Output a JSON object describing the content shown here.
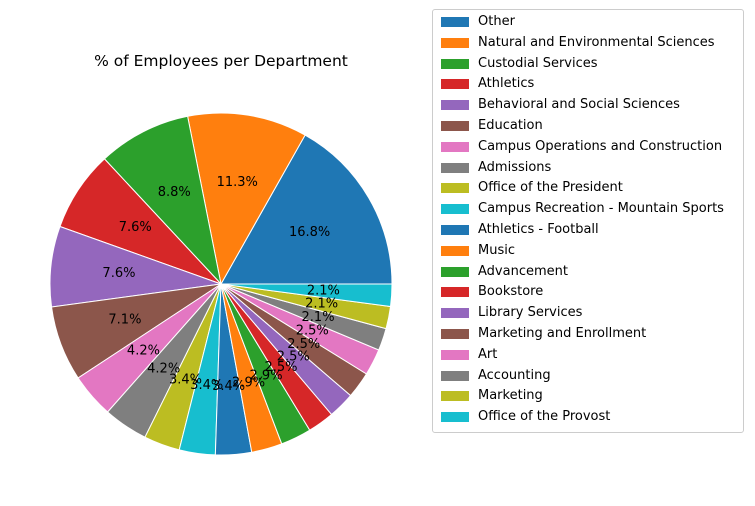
{
  "chart_data": {
    "type": "pie",
    "title": "% of Employees per Department",
    "start_angle_deg": 0,
    "direction": "counterclockwise",
    "label_format": "{pct}%",
    "legend_position": "right",
    "slices": [
      {
        "label": "Other",
        "value": 16.8,
        "color": "#1f77b4",
        "pct_label": "16.8%"
      },
      {
        "label": "Natural and Environmental Sciences",
        "value": 11.3,
        "color": "#ff7f0e",
        "pct_label": "11.3%"
      },
      {
        "label": "Custodial Services",
        "value": 8.8,
        "color": "#2ca02c",
        "pct_label": "8.8%"
      },
      {
        "label": "Athletics",
        "value": 7.6,
        "color": "#d62728",
        "pct_label": "7.6%"
      },
      {
        "label": "Behavioral and Social Sciences",
        "value": 7.6,
        "color": "#9467bd",
        "pct_label": "7.6%"
      },
      {
        "label": "Education",
        "value": 7.1,
        "color": "#8c564b",
        "pct_label": "7.1%"
      },
      {
        "label": "Campus Operations and Construction",
        "value": 4.2,
        "color": "#e377c2",
        "pct_label": "4.2%"
      },
      {
        "label": "Admissions",
        "value": 4.2,
        "color": "#7f7f7f",
        "pct_label": "4.2%"
      },
      {
        "label": "Office of the President",
        "value": 3.4,
        "color": "#bcbd22",
        "pct_label": "3.4%"
      },
      {
        "label": "Campus Recreation - Mountain Sports",
        "value": 3.4,
        "color": "#17becf",
        "pct_label": "3.4%"
      },
      {
        "label": "Athletics - Football",
        "value": 3.4,
        "color": "#1f77b4",
        "pct_label": "3.4%"
      },
      {
        "label": "Music",
        "value": 2.9,
        "color": "#ff7f0e",
        "pct_label": "2.9%"
      },
      {
        "label": "Advancement",
        "value": 2.9,
        "color": "#2ca02c",
        "pct_label": "2.9%"
      },
      {
        "label": "Bookstore",
        "value": 2.5,
        "color": "#d62728",
        "pct_label": "2.5%"
      },
      {
        "label": "Library Services",
        "value": 2.5,
        "color": "#9467bd",
        "pct_label": "2.5%"
      },
      {
        "label": "Marketing and Enrollment",
        "value": 2.5,
        "color": "#8c564b",
        "pct_label": "2.5%"
      },
      {
        "label": "Art",
        "value": 2.5,
        "color": "#e377c2",
        "pct_label": "2.5%"
      },
      {
        "label": "Accounting",
        "value": 2.1,
        "color": "#7f7f7f",
        "pct_label": "2.1%"
      },
      {
        "label": "Marketing",
        "value": 2.1,
        "color": "#bcbd22",
        "pct_label": "2.1%"
      },
      {
        "label": "Office of the Provost",
        "value": 2.1,
        "color": "#17becf",
        "pct_label": "2.1%"
      }
    ]
  }
}
